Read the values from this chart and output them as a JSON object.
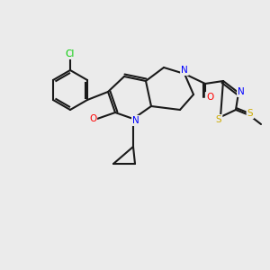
{
  "bg_color": "#ebebeb",
  "bond_color": "#1a1a1a",
  "bond_width": 1.5,
  "atom_colors": {
    "N": "#0000ff",
    "O": "#ff0000",
    "S": "#ccaa00",
    "Cl": "#00cc00",
    "C": "#1a1a1a"
  },
  "font_size": 7.5,
  "fig_size": [
    3.0,
    3.0
  ],
  "dpi": 100
}
